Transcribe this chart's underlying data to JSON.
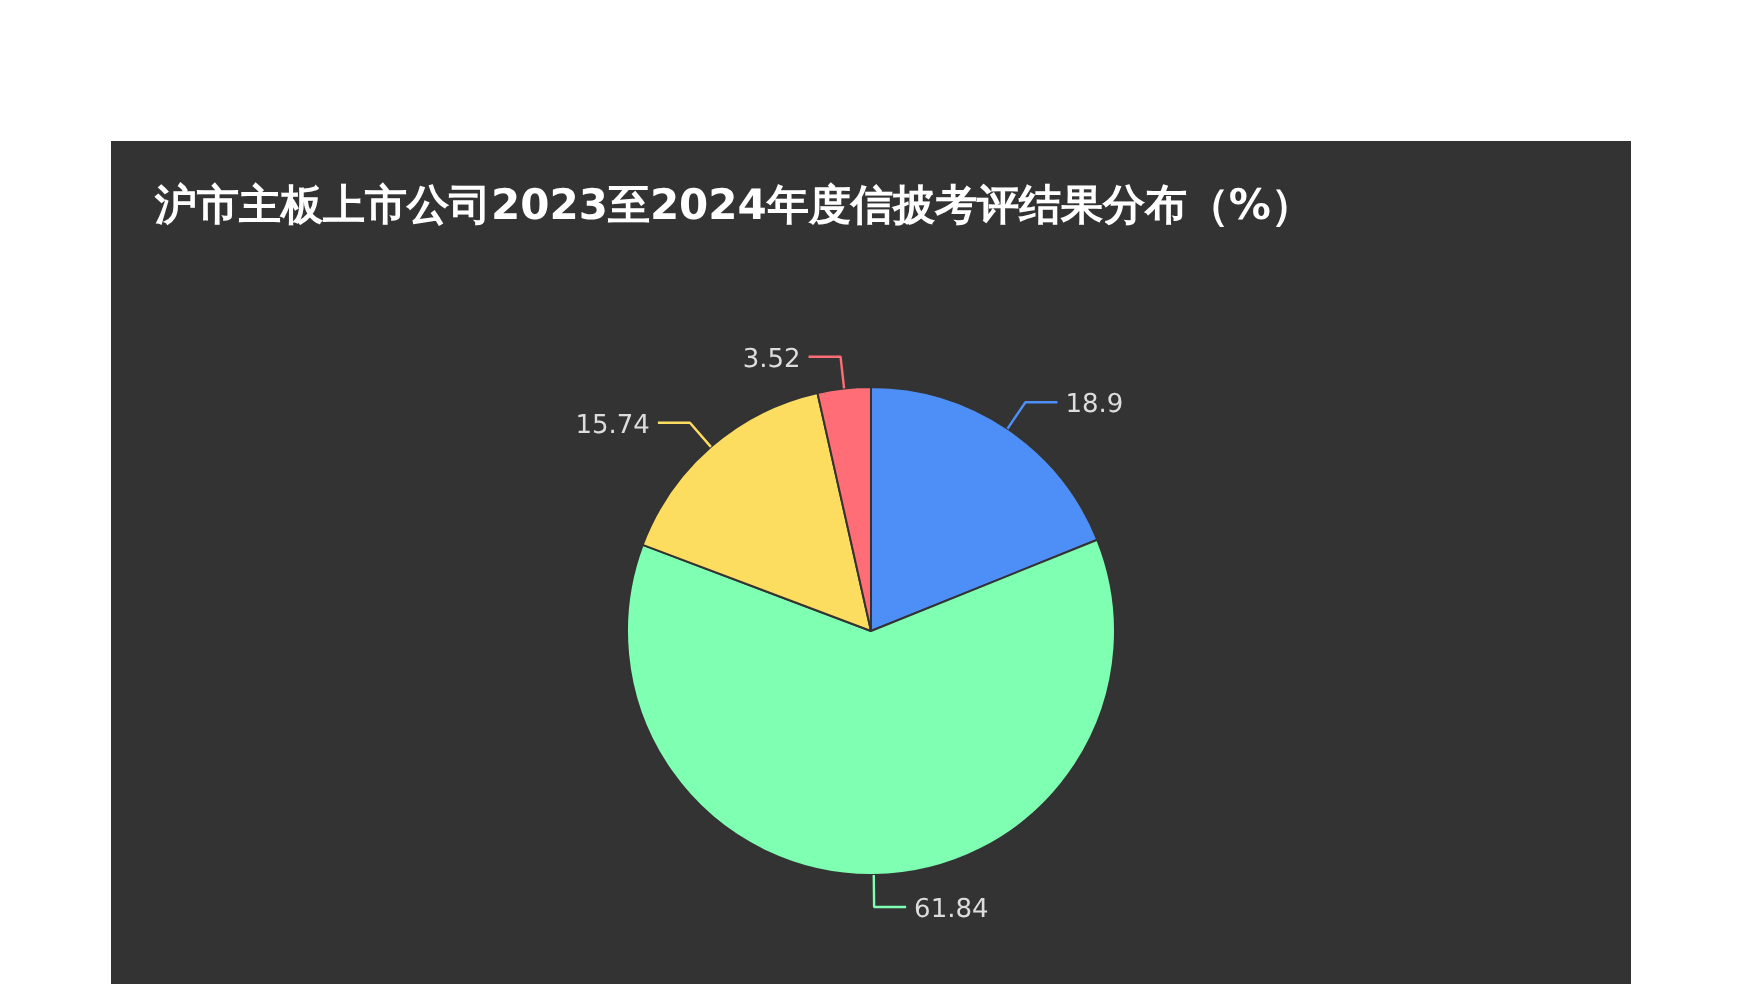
{
  "chart_data": {
    "type": "pie",
    "title": "沪市主板上市公司2023至2024年度信披考评结果分布（%）",
    "categories": [
      null,
      null,
      null,
      null
    ],
    "values": [
      18.9,
      61.84,
      15.74,
      3.52
    ],
    "colors": [
      "#4e8ff7",
      "#7effb2",
      "#fddd60",
      "#ff6e76"
    ],
    "data_labels": true
  }
}
